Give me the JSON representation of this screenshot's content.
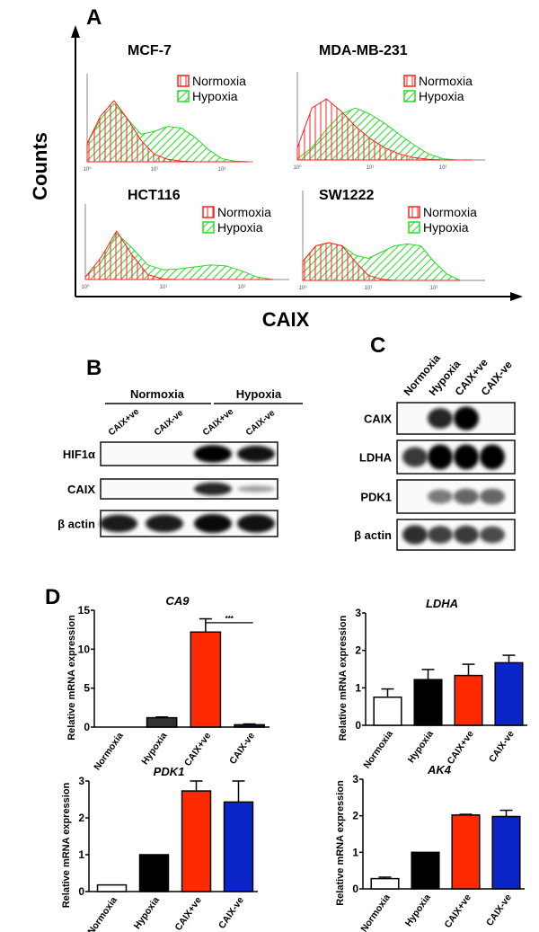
{
  "panels": {
    "a": "A",
    "b": "B",
    "c": "C",
    "d": "D"
  },
  "panel_a": {
    "y_axis_label": "Counts",
    "x_axis_label": "CAIX"
  },
  "panel_b": {
    "group_headers": [
      "Normoxia",
      "Hypoxia"
    ],
    "lanes": [
      "CAIX+ve",
      "CAIX-ve",
      "CAIX+ve",
      "CAIX-ve"
    ],
    "rows": [
      {
        "label": "HIF1α",
        "bands": [
          0,
          0,
          1.0,
          0.9
        ]
      },
      {
        "label": "CAIX",
        "bands": [
          0,
          0,
          0.8,
          0.15
        ]
      },
      {
        "label": "β actin",
        "bands": [
          0.85,
          0.85,
          0.95,
          0.9
        ]
      }
    ]
  },
  "panel_c": {
    "lanes": [
      "Normoxia",
      "Hypoxia",
      "CAIX+ve",
      "CAIX-ve"
    ],
    "rows": [
      {
        "label": "CAIX",
        "bands": [
          0,
          0.8,
          1.0,
          0
        ]
      },
      {
        "label": "LDHA",
        "bands": [
          0.7,
          1.0,
          1.0,
          1.0
        ]
      },
      {
        "label": "PDK1",
        "bands": [
          0,
          0.35,
          0.45,
          0.45
        ]
      },
      {
        "label": "β actin",
        "bands": [
          0.75,
          0.65,
          0.7,
          0.6
        ]
      }
    ]
  },
  "colors": {
    "normoxia_hist": "#ff2020",
    "hypoxia_hist": "#22dd22",
    "normoxia_bar": "#ffffff",
    "hypoxia_bar": "#000000",
    "caix_pos_bar": "#ff2a00",
    "caix_neg_bar": "#0a24c8"
  },
  "chart_data": [
    {
      "type": "area",
      "title": "MCF-7",
      "xscale": "log",
      "x_ticks": [
        "10⁰",
        "10¹",
        "10²"
      ],
      "legend": [
        "Normoxia",
        "Hypoxia"
      ],
      "x_log10": [
        0,
        0.2,
        0.4,
        0.6,
        0.8,
        1.0,
        1.2,
        1.4,
        1.6,
        1.8,
        2.0,
        2.2,
        2.4
      ],
      "series": [
        {
          "name": "Normoxia",
          "values": [
            0.3,
            0.75,
            1.0,
            0.7,
            0.35,
            0.12,
            0.04,
            0.01,
            0,
            0,
            0,
            0,
            0
          ]
        },
        {
          "name": "Hypoxia",
          "values": [
            0.3,
            0.7,
            0.95,
            0.7,
            0.45,
            0.5,
            0.58,
            0.55,
            0.4,
            0.2,
            0.05,
            0.01,
            0
          ]
        }
      ]
    },
    {
      "type": "area",
      "title": "MDA-MB-231",
      "xscale": "log",
      "x_ticks": [
        "10⁰",
        "10¹",
        "10²"
      ],
      "legend": [
        "Normoxia",
        "Hypoxia"
      ],
      "x_log10": [
        0,
        0.2,
        0.4,
        0.6,
        0.8,
        1.0,
        1.2,
        1.4,
        1.6,
        1.8,
        2.0,
        2.2,
        2.4
      ],
      "series": [
        {
          "name": "Normoxia",
          "values": [
            0.2,
            0.85,
            1.0,
            0.8,
            0.55,
            0.35,
            0.2,
            0.1,
            0.04,
            0.01,
            0,
            0,
            0
          ]
        },
        {
          "name": "Hypoxia",
          "values": [
            0.02,
            0.2,
            0.5,
            0.75,
            0.85,
            0.75,
            0.6,
            0.42,
            0.25,
            0.1,
            0.02,
            0,
            0
          ]
        }
      ]
    },
    {
      "type": "area",
      "title": "HCT116",
      "xscale": "log",
      "x_ticks": [
        "10⁰",
        "10¹",
        "10²"
      ],
      "legend": [
        "Normoxia",
        "Hypoxia"
      ],
      "x_log10": [
        0,
        0.2,
        0.4,
        0.6,
        0.8,
        1.0,
        1.2,
        1.4,
        1.6,
        1.8,
        2.0,
        2.2,
        2.4
      ],
      "series": [
        {
          "name": "Normoxia",
          "values": [
            0.05,
            0.45,
            1.0,
            0.5,
            0.1,
            0.01,
            0,
            0,
            0,
            0,
            0,
            0,
            0
          ]
        },
        {
          "name": "Hypoxia",
          "values": [
            0.05,
            0.35,
            0.95,
            0.65,
            0.3,
            0.2,
            0.22,
            0.26,
            0.3,
            0.28,
            0.18,
            0.05,
            0
          ]
        }
      ]
    },
    {
      "type": "area",
      "title": "SW1222",
      "xscale": "log",
      "x_ticks": [
        "10⁰",
        "10¹",
        "10²"
      ],
      "legend": [
        "Normoxia",
        "Hypoxia"
      ],
      "x_log10": [
        0,
        0.2,
        0.4,
        0.6,
        0.8,
        1.0,
        1.2,
        1.4,
        1.6,
        1.8,
        2.0,
        2.2,
        2.4
      ],
      "series": [
        {
          "name": "Normoxia",
          "values": [
            0.3,
            0.55,
            0.6,
            0.55,
            0.3,
            0.08,
            0.02,
            0,
            0,
            0,
            0,
            0,
            0
          ]
        },
        {
          "name": "Hypoxia",
          "values": [
            0.3,
            0.55,
            0.6,
            0.55,
            0.4,
            0.35,
            0.45,
            0.55,
            0.58,
            0.55,
            0.3,
            0.1,
            0
          ]
        }
      ]
    },
    {
      "type": "bar",
      "title": "CA9",
      "ylabel": "Relative mRNA expression",
      "categories": [
        "Normoxia",
        "Hypoxia",
        "CAIX+ve",
        "CAIX-ve"
      ],
      "values": [
        0,
        1.2,
        12.2,
        0.3
      ],
      "errors": [
        0,
        0.1,
        1.7,
        0.1
      ],
      "ylim": [
        0,
        15
      ],
      "yticks": [
        0,
        5,
        10,
        15
      ],
      "significance": {
        "between": [
          "CAIX+ve",
          "CAIX-ve"
        ],
        "label": "***"
      }
    },
    {
      "type": "bar",
      "title": "LDHA",
      "ylabel": "Relative mRNA expression",
      "categories": [
        "Normoxia",
        "Hypoxia",
        "CAIX+ve",
        "CAIX-ve"
      ],
      "values": [
        0.75,
        1.22,
        1.33,
        1.67
      ],
      "errors": [
        0.22,
        0.27,
        0.3,
        0.2
      ],
      "ylim": [
        0,
        3
      ],
      "yticks": [
        0,
        1,
        2,
        3
      ]
    },
    {
      "type": "bar",
      "title": "PDK1",
      "ylabel": "Relative mRNA expression",
      "categories": [
        "Normoxia",
        "Hypoxia",
        "CAIX+ve",
        "CAIX-ve"
      ],
      "values": [
        0.18,
        1.0,
        2.73,
        2.43
      ],
      "errors": [
        0,
        0,
        0.27,
        0.57
      ],
      "ylim": [
        0,
        3
      ],
      "yticks": [
        0,
        1,
        2,
        3
      ]
    },
    {
      "type": "bar",
      "title": "AK4",
      "ylabel": "Relative mRNA expression",
      "categories": [
        "Normoxia",
        "Hypoxia",
        "CAIX+ve",
        "CAIX-ve"
      ],
      "values": [
        0.28,
        1.0,
        2.02,
        1.98
      ],
      "errors": [
        0.04,
        0,
        0.02,
        0.17
      ],
      "ylim": [
        0,
        3
      ],
      "yticks": [
        0,
        1,
        2,
        3
      ]
    }
  ]
}
